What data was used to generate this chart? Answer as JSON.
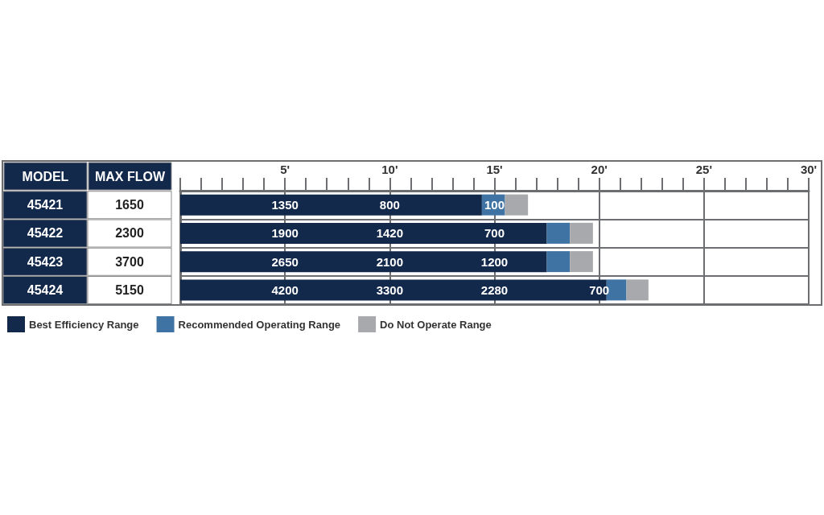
{
  "chart_data": {
    "type": "bar",
    "orientation": "horizontal",
    "stacked": true,
    "categories": [
      "45421",
      "45422",
      "45423",
      "45424"
    ],
    "y2_categories": [
      "1650",
      "2300",
      "3700",
      "5150"
    ],
    "ylabel": "MODEL",
    "y2label": "MAX FLOW",
    "series": [
      {
        "name": "Best Efficiency Range",
        "color": "#13294b",
        "values": [
          14.4,
          17.5,
          17.5,
          20.35
        ]
      },
      {
        "name": "Recommended Operating Range",
        "color": "#3e73a3",
        "values": [
          1.1,
          1.1,
          1.1,
          0.95
        ]
      },
      {
        "name": "Do Not Operate Range",
        "color": "#a7a9ac",
        "values": [
          1.1,
          1.1,
          1.1,
          1.05
        ]
      }
    ],
    "xlim": [
      0,
      30
    ],
    "xticks": [
      {
        "value": 0,
        "label": null
      },
      {
        "value": 1,
        "label": null
      },
      {
        "value": 2,
        "label": null
      },
      {
        "value": 3,
        "label": null
      },
      {
        "value": 4,
        "label": null
      },
      {
        "value": 5,
        "label": "5'"
      },
      {
        "value": 6,
        "label": null
      },
      {
        "value": 7,
        "label": null
      },
      {
        "value": 8,
        "label": null
      },
      {
        "value": 9,
        "label": null
      },
      {
        "value": 10,
        "label": "10'"
      },
      {
        "value": 11,
        "label": null
      },
      {
        "value": 12,
        "label": null
      },
      {
        "value": 13,
        "label": null
      },
      {
        "value": 14,
        "label": null
      },
      {
        "value": 15,
        "label": "15'"
      },
      {
        "value": 16,
        "label": null
      },
      {
        "value": 17,
        "label": null
      },
      {
        "value": 18,
        "label": null
      },
      {
        "value": 19,
        "label": null
      },
      {
        "value": 20,
        "label": "20'"
      },
      {
        "value": 21,
        "label": null
      },
      {
        "value": 22,
        "label": null
      },
      {
        "value": 23,
        "label": null
      },
      {
        "value": 24,
        "label": null
      },
      {
        "value": 25,
        "label": "25'"
      },
      {
        "value": 26,
        "label": null
      },
      {
        "value": 27,
        "label": null
      },
      {
        "value": 28,
        "label": null
      },
      {
        "value": 29,
        "label": null
      },
      {
        "value": 30,
        "label": "30'"
      }
    ],
    "grid": true,
    "legend": "bottom left",
    "annotations": [
      {
        "text": "1350",
        "x": 5,
        "y": "45421"
      },
      {
        "text": "800",
        "x": 10,
        "y": "45421"
      },
      {
        "text": "100",
        "x": 15,
        "y": "45421"
      },
      {
        "text": "1900",
        "x": 5,
        "y": "45422"
      },
      {
        "text": "1420",
        "x": 10,
        "y": "45422"
      },
      {
        "text": "700",
        "x": 15,
        "y": "45422"
      },
      {
        "text": "2650",
        "x": 5,
        "y": "45423"
      },
      {
        "text": "2100",
        "x": 10,
        "y": "45423"
      },
      {
        "text": "1200",
        "x": 15,
        "y": "45423"
      },
      {
        "text": "4200",
        "x": 5,
        "y": "45424"
      },
      {
        "text": "3300",
        "x": 10,
        "y": "45424"
      },
      {
        "text": "2280",
        "x": 15,
        "y": "45424"
      },
      {
        "text": "700",
        "x": 20,
        "y": "45424"
      }
    ]
  }
}
